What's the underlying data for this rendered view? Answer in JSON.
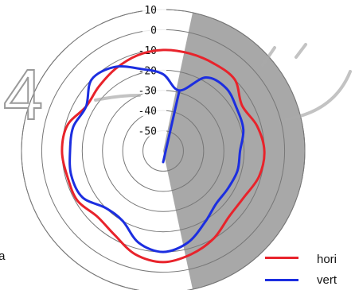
{
  "chart_data": {
    "type": "polar",
    "r_ticks": [
      "10",
      "0",
      "-10",
      "-20",
      "-30",
      "-40",
      "-50"
    ],
    "r_values": [
      10,
      0,
      -10,
      -20,
      -30,
      -40,
      -50
    ],
    "rlim": [
      -60,
      10
    ],
    "grid": true,
    "angle_zero": "top",
    "angle_direction": "clockwise",
    "shaded_sector_deg": [
      12,
      168
    ],
    "watermark": "4",
    "left_label": "ta",
    "legend_position": "bottom-right",
    "colors": {
      "horizontal": "#e8232b",
      "vertical": "#1c2ee0",
      "shade": "#a8a8a8",
      "grid": "#777777"
    },
    "series": [
      {
        "name": "hori",
        "color": "#e8232b",
        "theta_deg": [
          0,
          15,
          30,
          45,
          60,
          75,
          90,
          105,
          120,
          135,
          150,
          165,
          180,
          195,
          210,
          225,
          240,
          255,
          270,
          285,
          300,
          315,
          330,
          345
        ],
        "r": [
          -10,
          -10,
          -10,
          -10,
          -15,
          -12,
          -10,
          -11,
          -14,
          -14,
          -10,
          -7,
          -5,
          -7,
          -12,
          -14,
          -11,
          -11,
          -10,
          -11,
          -16,
          -15,
          -13,
          -11
        ]
      },
      {
        "name": "vert",
        "color": "#1c2ee0",
        "theta_deg": [
          0,
          15,
          30,
          45,
          60,
          75,
          90,
          105,
          120,
          135,
          150,
          165,
          180,
          195,
          210,
          225,
          240,
          255,
          270,
          285,
          300,
          315,
          330,
          345
        ],
        "r": [
          -22,
          -29,
          -18,
          -16,
          -18,
          -19,
          -22,
          -22,
          -23,
          -23,
          -19,
          -13,
          -10,
          -13,
          -20,
          -20,
          -14,
          -13,
          -14,
          -14,
          -16,
          -10,
          -12,
          -18
        ]
      }
    ]
  }
}
